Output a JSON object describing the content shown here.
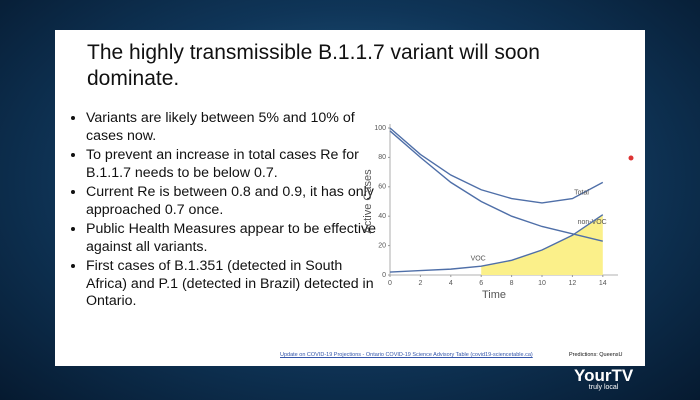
{
  "slide": {
    "title": "The highly transmissible B.1.1.7 variant will soon dominate.",
    "bullets": [
      "Variants are likely between 5% and 10% of cases now.",
      "To prevent an increase in total cases Re for B.1.1.7 needs to be below 0.7.",
      "Current Re is between 0.8 and 0.9, it has only approached 0.7 once.",
      "Public Health Measures appear to be effective against all variants.",
      "First cases of B.1.351 (detected in South Africa) and P.1 (detected in Brazil) detected in Ontario."
    ],
    "source": "Update on COVID-19 Projections - Ontario COVID-19 Science Advisory Table (covid19-sciencetable.ca)",
    "credit": "Predictions: QueensU"
  },
  "logo": {
    "brand": "YourTV",
    "tagline": "truly local"
  },
  "chart_data": {
    "type": "line",
    "x_label": "Time",
    "y_label": "Active Cases",
    "x": [
      0,
      2,
      4,
      6,
      8,
      10,
      12,
      14
    ],
    "xlim": [
      0,
      15
    ],
    "xticks": [
      0,
      2,
      4,
      6,
      8,
      10,
      12,
      14
    ],
    "ylim": [
      0,
      100
    ],
    "yticks": [
      0,
      20,
      40,
      60,
      80,
      100
    ],
    "series": [
      {
        "name": "Total",
        "color": "#4f6fa8",
        "values": [
          100,
          82,
          68,
          58,
          52,
          49,
          52,
          63
        ]
      },
      {
        "name": "non-VOC",
        "color": "#4f6fa8",
        "values": [
          98,
          80,
          63,
          50,
          40,
          33,
          28,
          23
        ]
      },
      {
        "name": "VOC",
        "color": "#4f6fa8",
        "values": [
          2,
          3,
          4,
          6,
          10,
          17,
          27,
          41
        ]
      }
    ]
  }
}
